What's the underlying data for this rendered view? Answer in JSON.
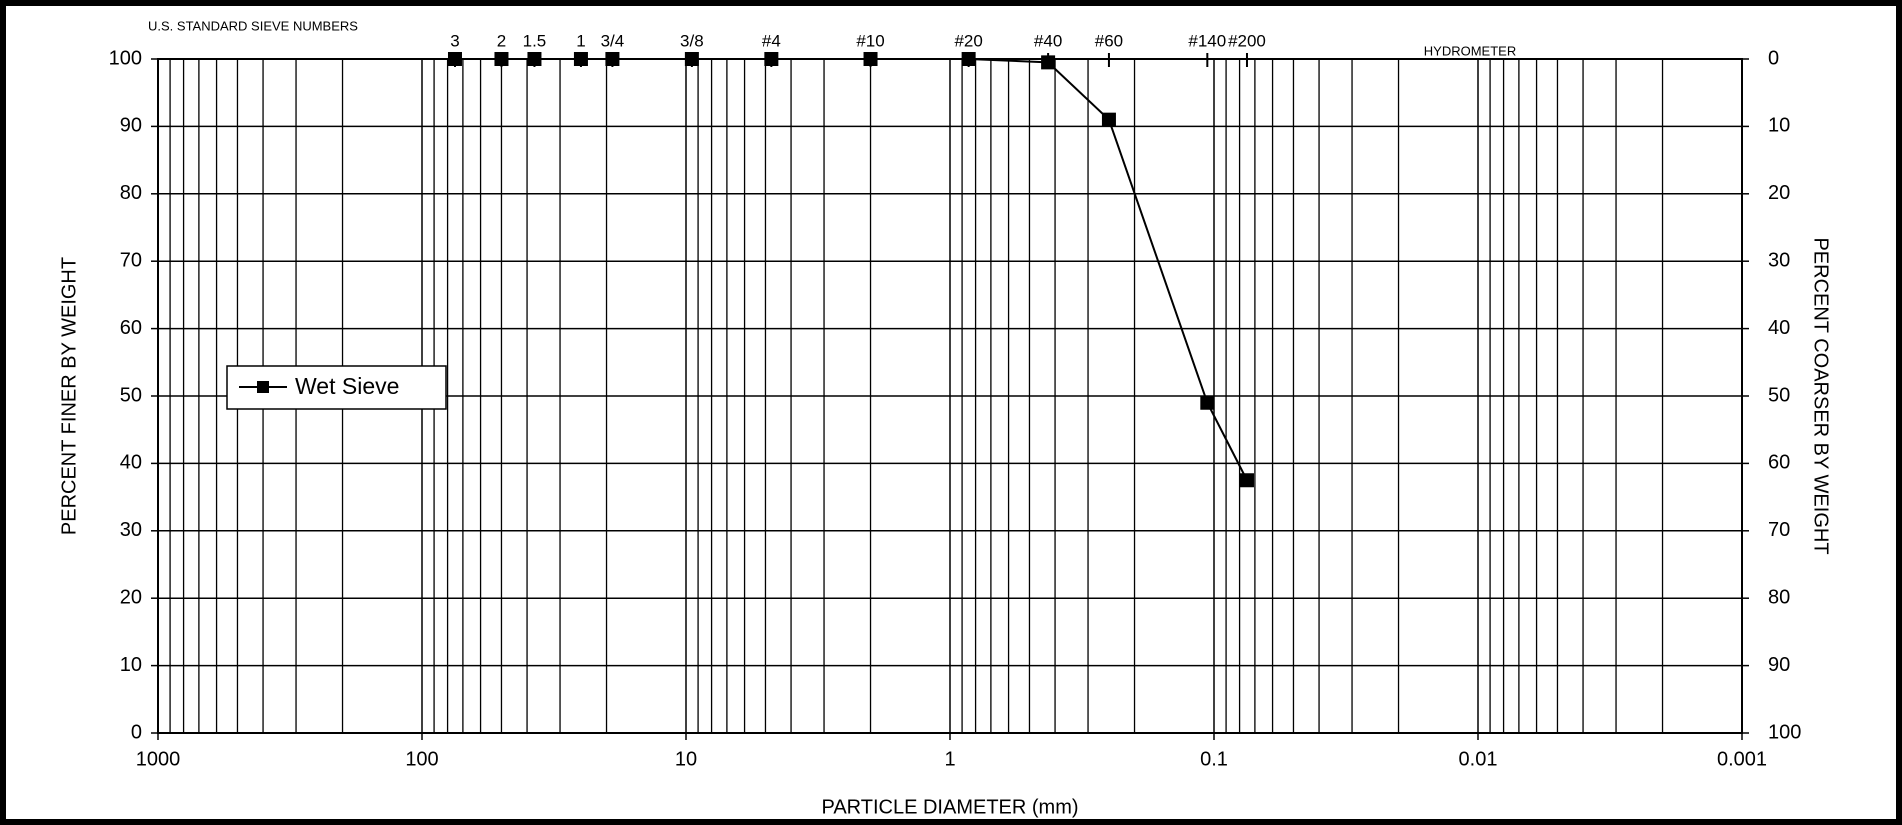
{
  "chart_data": {
    "type": "line",
    "top_label": "U.S. STANDARD SIEVE NUMBERS",
    "annotation": "HYDROMETER",
    "xlabel": "PARTICLE DIAMETER (mm)",
    "ylabel": "PERCENT FINER BY WEIGHT",
    "y2label": "PERCENT COARSER BY WEIGHT",
    "xscale": "log",
    "x": [
      75,
      50,
      37.5,
      25,
      19,
      9.5,
      4.75,
      2,
      0.85,
      0.425,
      0.25,
      0.106,
      0.075
    ],
    "series": [
      {
        "name": "Wet Sieve",
        "color": "#000000",
        "values": [
          100,
          100,
          100,
          100,
          100,
          100,
          100,
          100,
          100,
          99.5,
          91,
          49,
          37.5
        ]
      }
    ],
    "xlim": [
      1000,
      0.001
    ],
    "xticks": [
      1000,
      100,
      10,
      1,
      0.1,
      0.01,
      0.001
    ],
    "x2ticks": [
      {
        "value": 75,
        "label": "3"
      },
      {
        "value": 50,
        "label": "2"
      },
      {
        "value": 37.5,
        "label": "1.5"
      },
      {
        "value": 25,
        "label": "1"
      },
      {
        "value": 19,
        "label": "3/4"
      },
      {
        "value": 9.5,
        "label": "3/8"
      },
      {
        "value": 4.75,
        "label": "#4"
      },
      {
        "value": 2,
        "label": "#10"
      },
      {
        "value": 0.85,
        "label": "#20"
      },
      {
        "value": 0.425,
        "label": "#40"
      },
      {
        "value": 0.25,
        "label": "#60"
      },
      {
        "value": 0.106,
        "label": "#140"
      },
      {
        "value": 0.075,
        "label": "#200"
      }
    ],
    "ylim": [
      0,
      100
    ],
    "yticks": [
      0,
      10,
      20,
      30,
      40,
      50,
      60,
      70,
      80,
      90,
      100
    ],
    "y2lim": [
      100,
      0
    ],
    "y2ticks": [
      0,
      10,
      20,
      30,
      40,
      50,
      60,
      70,
      80,
      90,
      100
    ],
    "grid": true,
    "legend": "left"
  }
}
